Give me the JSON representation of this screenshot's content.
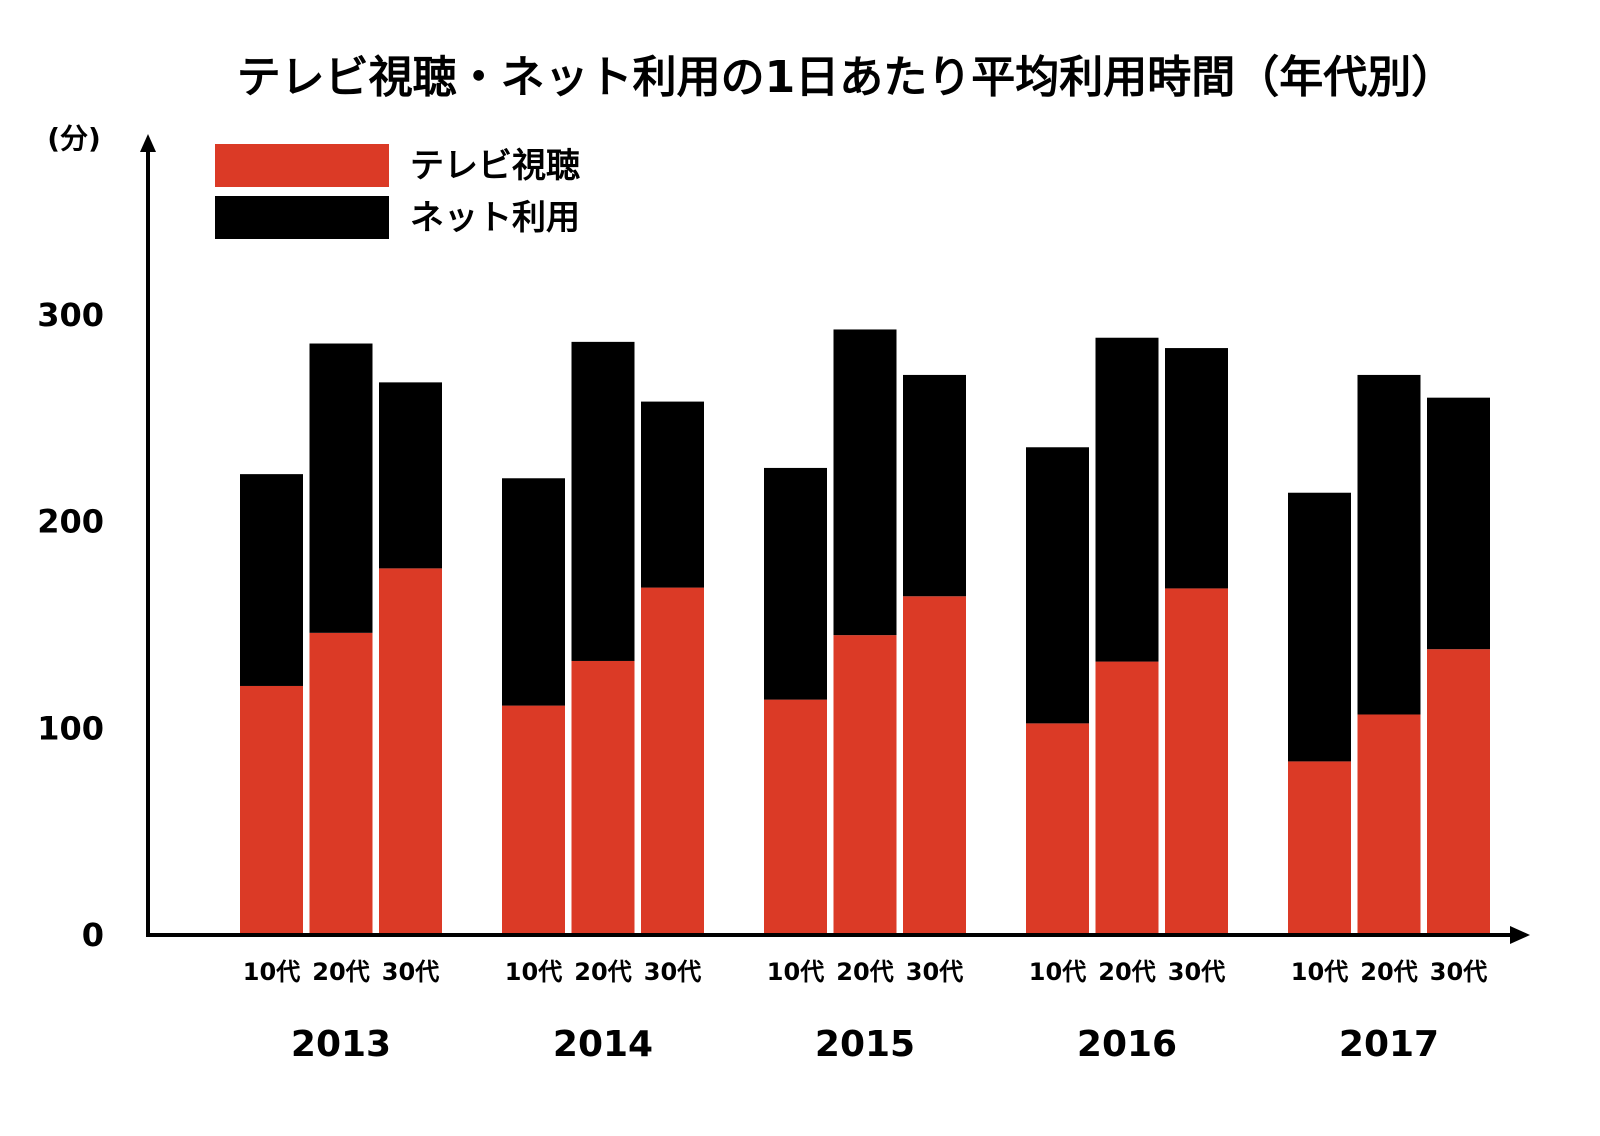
{
  "chart_data": {
    "type": "bar",
    "stacked": true,
    "title": "テレビ視聴・ネット利用の1日あたり平均利用時間（年代別）",
    "ylabel": "(分)",
    "xlabel": "",
    "ylim": [
      0,
      300
    ],
    "yticks": [
      0,
      100,
      200,
      300
    ],
    "grid": false,
    "legend_position": "top-left",
    "groups": [
      "2013",
      "2014",
      "2015",
      "2016",
      "2017"
    ],
    "categories": [
      "10代",
      "20代",
      "30代"
    ],
    "series": [
      {
        "name": "テレビ視聴",
        "color": "#DB3A26",
        "values": [
          [
            120.5,
            146.2,
            177.4
          ],
          [
            111.0,
            132.6,
            168.1
          ],
          [
            113.9,
            145.1,
            163.9
          ],
          [
            102.4,
            132.3,
            167.7
          ],
          [
            84.0,
            106.7,
            138.3
          ]
        ]
      },
      {
        "name": "ネット利用",
        "color": "#000000",
        "values": [
          [
            102.5,
            140.0,
            90.0
          ],
          [
            110.0,
            154.4,
            90.0
          ],
          [
            112.1,
            147.9,
            107.1
          ],
          [
            133.6,
            156.7,
            116.3
          ],
          [
            130.0,
            164.3,
            121.7
          ]
        ]
      }
    ]
  }
}
